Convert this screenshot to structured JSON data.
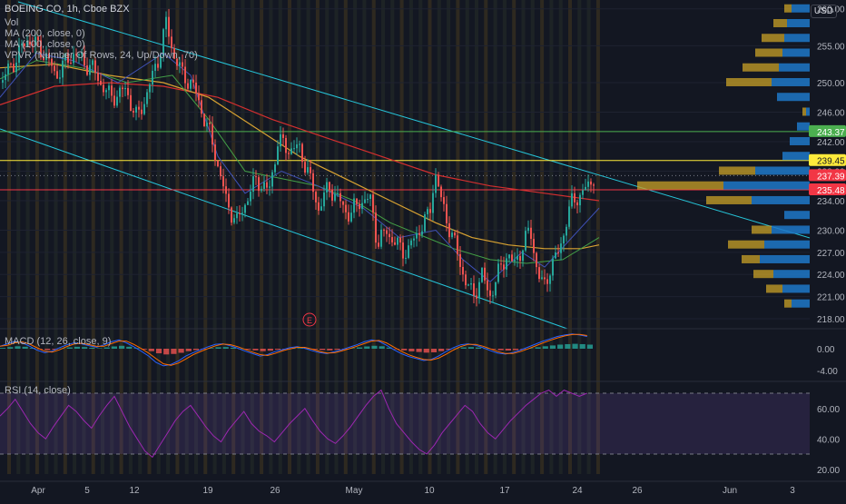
{
  "chart_data": {
    "type": "candlestick",
    "title": "BOEING CO, 1h, Cboe BZX",
    "currency": "USD",
    "indicators": [
      "Vol",
      "MA (200, close, 0)",
      "MA (100, close, 0)",
      "VPVR (Number Of Rows, 24, Up/Down, 70)"
    ],
    "macd_label": "MACD (12, 26, close, 9)",
    "rsi_label": "RSI (14, close)",
    "earnings_marker": "E",
    "price_axis": {
      "ticks": [
        "260.00",
        "255.00",
        "250.00",
        "246.00",
        "242.00",
        "238.00",
        "234.00",
        "230.00",
        "227.00",
        "224.00",
        "221.00",
        "218.00"
      ],
      "range": [
        217.5,
        261.2
      ]
    },
    "macd_axis": {
      "ticks": [
        "0.00",
        "-4.00"
      ]
    },
    "rsi_axis": {
      "ticks": [
        "60.00",
        "40.00",
        "20.00"
      ],
      "overbought": 70,
      "oversold": 30
    },
    "x_ticks": [
      "Apr",
      "5",
      "12",
      "19",
      "26",
      "May",
      "10",
      "17",
      "24",
      "26",
      "Jun",
      "3"
    ],
    "horizontal_levels": [
      {
        "price": 243.37,
        "label": "243.37",
        "color": "#4caf50"
      },
      {
        "price": 239.45,
        "label": "239.45",
        "color": "#ffeb3b"
      },
      {
        "price": 235.48,
        "label": "235.48",
        "color": "#f23645"
      }
    ],
    "last_price": {
      "price": 237.39,
      "label": "237.39"
    },
    "price_path": [
      [
        0,
        250
      ],
      [
        20,
        254
      ],
      [
        30,
        256
      ],
      [
        48,
        254
      ],
      [
        60,
        251
      ],
      [
        80,
        254
      ],
      [
        100,
        252
      ],
      [
        120,
        248
      ],
      [
        138,
        249
      ],
      [
        150,
        245
      ],
      [
        165,
        250
      ],
      [
        175,
        254
      ],
      [
        182,
        258
      ],
      [
        190,
        254
      ],
      [
        200,
        251
      ],
      [
        210,
        250
      ],
      [
        222,
        246
      ],
      [
        235,
        241
      ],
      [
        248,
        234
      ],
      [
        260,
        231
      ],
      [
        270,
        234
      ],
      [
        282,
        237
      ],
      [
        295,
        235
      ],
      [
        305,
        242
      ],
      [
        318,
        241
      ],
      [
        330,
        241
      ],
      [
        340,
        237
      ],
      [
        350,
        233
      ],
      [
        362,
        236
      ],
      [
        372,
        234
      ],
      [
        385,
        232
      ],
      [
        395,
        234
      ],
      [
        408,
        234
      ],
      [
        415,
        228
      ],
      [
        425,
        230
      ],
      [
        435,
        228
      ],
      [
        448,
        227
      ],
      [
        460,
        230
      ],
      [
        472,
        232
      ],
      [
        478,
        238
      ],
      [
        485,
        234
      ],
      [
        495,
        230
      ],
      [
        505,
        226
      ],
      [
        512,
        223
      ],
      [
        520,
        221
      ],
      [
        530,
        224
      ],
      [
        538,
        221
      ],
      [
        548,
        224
      ],
      [
        558,
        227
      ],
      [
        565,
        225
      ],
      [
        575,
        228
      ],
      [
        583,
        230
      ],
      [
        592,
        224
      ],
      [
        598,
        222
      ],
      [
        605,
        225
      ],
      [
        615,
        227
      ],
      [
        622,
        231
      ],
      [
        630,
        234
      ],
      [
        640,
        235
      ],
      [
        648,
        236
      ],
      [
        655,
        238
      ]
    ],
    "ma200_path": [
      [
        0,
        247
      ],
      [
        60,
        249.5
      ],
      [
        120,
        250
      ],
      [
        180,
        249.5
      ],
      [
        240,
        248
      ],
      [
        300,
        245
      ],
      [
        360,
        242.5
      ],
      [
        420,
        240
      ],
      [
        480,
        237.5
      ],
      [
        540,
        236
      ],
      [
        600,
        235
      ],
      [
        660,
        234
      ]
    ],
    "ma100_path": [
      [
        0,
        252
      ],
      [
        60,
        252.5
      ],
      [
        120,
        251
      ],
      [
        180,
        250
      ],
      [
        230,
        248
      ],
      [
        280,
        244
      ],
      [
        330,
        240
      ],
      [
        380,
        237
      ],
      [
        430,
        234
      ],
      [
        480,
        231
      ],
      [
        520,
        229
      ],
      [
        560,
        228
      ],
      [
        600,
        227.5
      ],
      [
        640,
        227.5
      ],
      [
        660,
        228
      ]
    ],
    "ma50_path": [
      [
        0,
        250.5
      ],
      [
        40,
        253
      ],
      [
        90,
        252
      ],
      [
        140,
        250
      ],
      [
        190,
        251
      ],
      [
        230,
        245
      ],
      [
        270,
        238
      ],
      [
        310,
        237
      ],
      [
        350,
        236
      ],
      [
        390,
        234
      ],
      [
        430,
        231
      ],
      [
        470,
        229
      ],
      [
        500,
        227.5
      ],
      [
        540,
        226
      ],
      [
        580,
        225.5
      ],
      [
        620,
        226
      ],
      [
        660,
        229
      ]
    ],
    "ma20_path": [
      [
        0,
        248
      ],
      [
        40,
        254
      ],
      [
        80,
        253
      ],
      [
        130,
        250
      ],
      [
        180,
        254
      ],
      [
        210,
        251
      ],
      [
        240,
        240
      ],
      [
        270,
        235
      ],
      [
        310,
        238
      ],
      [
        350,
        236
      ],
      [
        400,
        233
      ],
      [
        440,
        229
      ],
      [
        480,
        230
      ],
      [
        510,
        226
      ],
      [
        540,
        223
      ],
      [
        575,
        227
      ],
      [
        600,
        225
      ],
      [
        630,
        229
      ],
      [
        660,
        233
      ]
    ],
    "vpvr": [
      {
        "price": 260.0,
        "up": 20,
        "down": 8
      },
      {
        "price": 258.0,
        "up": 25,
        "down": 15
      },
      {
        "price": 256.0,
        "up": 28,
        "down": 25
      },
      {
        "price": 254.0,
        "up": 30,
        "down": 30
      },
      {
        "price": 252.0,
        "up": 34,
        "down": 40
      },
      {
        "price": 250.0,
        "up": 42,
        "down": 50
      },
      {
        "price": 248.0,
        "up": 36,
        "down": 0
      },
      {
        "price": 246.0,
        "up": 4,
        "down": 4
      },
      {
        "price": 244.0,
        "up": 14,
        "down": 0
      },
      {
        "price": 242.0,
        "up": 22,
        "down": 0
      },
      {
        "price": 240.0,
        "up": 30,
        "down": 0
      },
      {
        "price": 238.0,
        "up": 60,
        "down": 40
      },
      {
        "price": 236.0,
        "up": 95,
        "down": 95
      },
      {
        "price": 234.0,
        "up": 64,
        "down": 50
      },
      {
        "price": 232.0,
        "up": 28,
        "down": 0
      },
      {
        "price": 230.0,
        "up": 42,
        "down": 22
      },
      {
        "price": 228.0,
        "up": 50,
        "down": 40
      },
      {
        "price": 226.0,
        "up": 55,
        "down": 20
      },
      {
        "price": 224.0,
        "up": 40,
        "down": 22
      },
      {
        "price": 222.0,
        "up": 30,
        "down": 18
      },
      {
        "price": 220.0,
        "up": 20,
        "down": 8
      }
    ],
    "macd_values": [
      0.5,
      1,
      1.5,
      1.2,
      0.5,
      -0.3,
      -0.8,
      -0.5,
      0.2,
      0.8,
      1.2,
      1.0,
      0.6,
      0.3,
      0.8,
      1.4,
      1.8,
      1.2,
      0.4,
      -0.5,
      -1.5,
      -2.8,
      -3.5,
      -3.2,
      -2.5,
      -1.5,
      -0.8,
      -0.2,
      0.4,
      0.9,
      1.0,
      0.6,
      0.1,
      -0.5,
      -1.0,
      -1.5,
      -1.2,
      -0.6,
      -0.2,
      0.2,
      0.4,
      0.1,
      -0.4,
      -0.8,
      -1.0,
      -0.6,
      -0.2,
      0.3,
      0.8,
      1.4,
      1.8,
      1.5,
      0.7,
      -0.2,
      -1.0,
      -1.6,
      -2.0,
      -2.4,
      -2.2,
      -1.5,
      -0.6,
      0.2,
      0.8,
      1.0,
      0.7,
      0.2,
      -0.4,
      -0.9,
      -1.1,
      -0.8,
      -0.3,
      0.3,
      0.9,
      1.5,
      2.0,
      2.5,
      2.8,
      3.0,
      2.8,
      2.5
    ],
    "rsi_values": [
      55,
      60,
      66,
      58,
      50,
      44,
      40,
      48,
      55,
      62,
      58,
      52,
      47,
      55,
      62,
      68,
      58,
      48,
      40,
      32,
      28,
      36,
      44,
      52,
      58,
      62,
      55,
      48,
      42,
      38,
      46,
      52,
      58,
      50,
      45,
      42,
      38,
      44,
      50,
      55,
      60,
      52,
      45,
      40,
      37,
      42,
      48,
      55,
      62,
      68,
      72,
      60,
      50,
      44,
      38,
      33,
      30,
      36,
      44,
      50,
      56,
      62,
      58,
      50,
      44,
      40,
      46,
      52,
      57,
      62,
      66,
      70,
      72,
      68,
      72,
      70,
      68,
      70
    ]
  }
}
